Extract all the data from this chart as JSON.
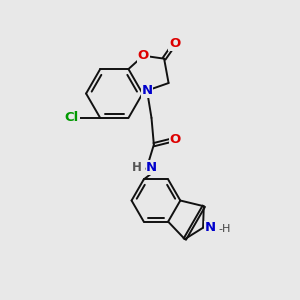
{
  "bg": "#e8e8e8",
  "bc": "#111111",
  "bw": 1.4,
  "dbo": 0.06,
  "colors": {
    "O": "#dd0000",
    "N": "#0000cc",
    "Cl": "#009900",
    "H": "#555555"
  },
  "fs": 9.5,
  "xlim": [
    0.0,
    10.0
  ],
  "ylim": [
    0.5,
    10.5
  ]
}
